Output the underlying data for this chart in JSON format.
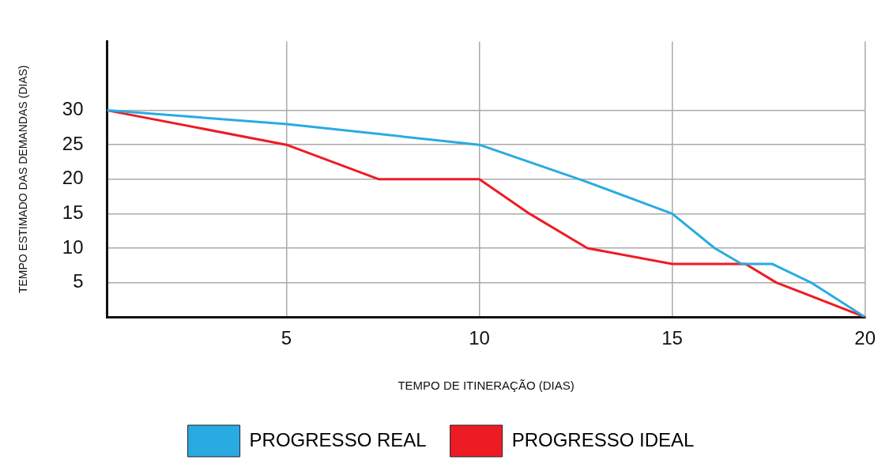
{
  "chart_data": {
    "type": "line",
    "xlabel": "TEMPO DE ITINERAÇÃO (DIAS)",
    "ylabel": "TEMPO ESTIMADO DAS DEMANDAS (DIAS)",
    "xlim": [
      0.35,
      20
    ],
    "ylim": [
      0,
      40
    ],
    "xticks": [
      5,
      10,
      15,
      20
    ],
    "yticks": [
      5,
      10,
      15,
      20,
      25,
      30
    ],
    "grid": true,
    "legend": "bottom",
    "marker": "none",
    "line_style": "solid",
    "series": [
      {
        "name": "PROGRESSO REAL",
        "color": "#29abe2",
        "x": [
          0.35,
          5,
          10,
          12.7,
          15,
          16.1,
          16.8,
          17.6,
          18.6,
          20
        ],
        "values": [
          30,
          28,
          25,
          19.8,
          15,
          10,
          7.7,
          7.7,
          5,
          0
        ]
      },
      {
        "name": "PROGRESSO IDEAL",
        "color": "#ed1c24",
        "x": [
          0.35,
          5,
          7.4,
          10,
          11.3,
          12.8,
          15,
          16.9,
          17.7,
          20
        ],
        "values": [
          30,
          25,
          20,
          20,
          15,
          10,
          7.7,
          7.7,
          5,
          0
        ]
      }
    ]
  }
}
